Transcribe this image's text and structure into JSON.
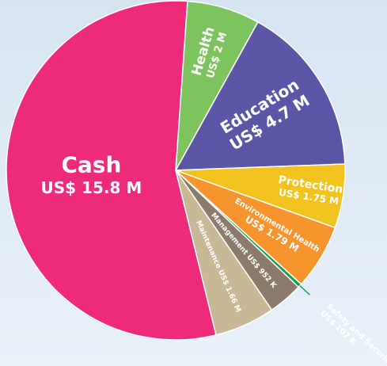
{
  "chart_data": {
    "type": "pie",
    "categories": [
      "Health",
      "Education",
      "Protection",
      "Environmental Health",
      "Safety and Security",
      "Management",
      "Maintenance",
      "Cash"
    ],
    "values": [
      2000000,
      4700000,
      1750000,
      1790000,
      107000,
      952000,
      1660000,
      15800000
    ],
    "value_labels": [
      "US$ 2 M",
      "US$ 4.7 M",
      "US$ 1.75 M",
      "US$ 1.79 M",
      "US$ 107 K",
      "US$ 952 K",
      "US$ 1.66 M",
      "US$ 15.8 M"
    ],
    "colors": [
      "#7dc45e",
      "#5b57a6",
      "#f2c21f",
      "#f7942e",
      "#1aa04a",
      "#8c7b6b",
      "#c9b896",
      "#ee2a7b"
    ]
  }
}
